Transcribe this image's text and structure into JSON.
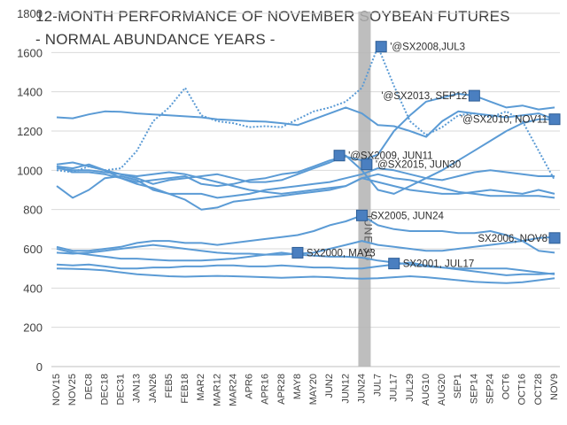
{
  "chart_data": {
    "type": "line",
    "title": "12-MONTH PERFORMANCE OF NOVEMBER SOYBEAN FUTURES",
    "subtitle": "- NORMAL ABUNDANCE YEARS -",
    "ylim": [
      0,
      1800
    ],
    "yticks": [
      0,
      200,
      400,
      600,
      800,
      1000,
      1200,
      1400,
      1600,
      1800
    ],
    "grid": "horizontal",
    "legend": "none",
    "colors": {
      "series": "#5b9bd5",
      "marker": "#4a7fc0",
      "marker_edge": "#2e5e96",
      "grid": "#d9d9d9",
      "highlight": "#b3b3b3"
    },
    "categories": [
      "NOV15",
      "NOV25",
      "DEC8",
      "DEC18",
      "DEC31",
      "JAN13",
      "JAN26",
      "FEB5",
      "FEB18",
      "MAR2",
      "MAR12",
      "MAR24",
      "APR6",
      "APR16",
      "APR28",
      "MAY8",
      "MAY20",
      "JUN2",
      "JUN12",
      "JUN24",
      "JUL7",
      "JUL17",
      "JUL29",
      "AUG10",
      "AUG20",
      "SEP1",
      "SEP14",
      "SEP24",
      "OCT6",
      "OCT16",
      "OCT28",
      "NOV9"
    ],
    "highlight": {
      "category_index": 19,
      "label": "JUNE 30"
    },
    "series": [
      {
        "values": [
          1270,
          1265,
          1285,
          1300,
          1298,
          1290,
          1285,
          1280,
          1275,
          1270,
          1260,
          1255,
          1250,
          1248,
          1240,
          1230,
          1260,
          1290,
          1320,
          1290,
          1230,
          1225,
          1200,
          1170,
          1250,
          1300,
          1290,
          1280,
          1270,
          1280,
          1290,
          1260
        ],
        "style": "solid"
      },
      {
        "values": [
          1000,
          990,
          1020,
          1000,
          1010,
          1100,
          1250,
          1320,
          1420,
          1280,
          1250,
          1240,
          1220,
          1225,
          1220,
          1260,
          1300,
          1320,
          1350,
          1420,
          1630,
          1430,
          1250,
          1180,
          1220,
          1280,
          1290,
          1270,
          1300,
          1250,
          1100,
          950
        ],
        "style": "dotted"
      },
      {
        "values": [
          1020,
          1010,
          1030,
          1000,
          960,
          940,
          950,
          960,
          970,
          930,
          920,
          930,
          950,
          960,
          980,
          990,
          1020,
          1050,
          1070,
          1050,
          1080,
          1200,
          1280,
          1350,
          1370,
          1390,
          1380,
          1350,
          1320,
          1330,
          1310,
          1320
        ],
        "style": "solid"
      },
      {
        "values": [
          1030,
          1040,
          1020,
          1000,
          980,
          960,
          930,
          950,
          960,
          970,
          980,
          960,
          940,
          940,
          950,
          980,
          1010,
          1040,
          1075,
          1000,
          900,
          880,
          920,
          960,
          1000,
          1050,
          1100,
          1150,
          1200,
          1240,
          1260,
          1260
        ],
        "style": "solid"
      },
      {
        "values": [
          920,
          860,
          900,
          960,
          970,
          950,
          900,
          880,
          880,
          880,
          860,
          870,
          880,
          900,
          910,
          920,
          930,
          940,
          960,
          980,
          1010,
          1000,
          980,
          960,
          950,
          970,
          990,
          1000,
          990,
          980,
          970,
          970
        ],
        "style": "solid"
      },
      {
        "values": [
          1010,
          1000,
          1000,
          990,
          980,
          970,
          980,
          990,
          980,
          960,
          940,
          920,
          900,
          890,
          880,
          890,
          900,
          910,
          920,
          960,
          980,
          960,
          950,
          930,
          910,
          890,
          880,
          870,
          870,
          870,
          870,
          860
        ],
        "style": "solid"
      },
      {
        "values": [
          1020,
          990,
          990,
          980,
          960,
          930,
          910,
          880,
          850,
          800,
          810,
          840,
          850,
          860,
          870,
          880,
          890,
          900,
          920,
          960,
          940,
          920,
          900,
          890,
          880,
          880,
          890,
          900,
          890,
          880,
          900,
          880
        ],
        "style": "solid"
      },
      {
        "values": [
          610,
          590,
          590,
          600,
          610,
          630,
          640,
          640,
          630,
          630,
          620,
          630,
          640,
          650,
          660,
          670,
          690,
          720,
          740,
          770,
          720,
          700,
          690,
          690,
          690,
          680,
          680,
          690,
          670,
          640,
          590,
          580
        ],
        "style": "solid"
      },
      {
        "values": [
          580,
          575,
          580,
          590,
          600,
          610,
          620,
          610,
          600,
          590,
          580,
          575,
          575,
          570,
          570,
          575,
          580,
          600,
          620,
          640,
          620,
          610,
          600,
          590,
          590,
          600,
          610,
          620,
          630,
          640,
          655,
          660
        ],
        "style": "solid"
      },
      {
        "values": [
          600,
          580,
          570,
          560,
          550,
          550,
          545,
          540,
          540,
          540,
          545,
          550,
          560,
          570,
          580,
          570,
          565,
          560,
          560,
          555,
          540,
          530,
          520,
          510,
          505,
          500,
          500,
          500,
          500,
          490,
          480,
          470
        ],
        "style": "solid"
      },
      {
        "values": [
          520,
          515,
          520,
          510,
          500,
          500,
          505,
          505,
          510,
          510,
          515,
          515,
          510,
          510,
          515,
          510,
          505,
          505,
          500,
          500,
          510,
          520,
          530,
          515,
          505,
          495,
          485,
          475,
          465,
          470,
          470,
          475
        ],
        "style": "solid"
      },
      {
        "values": [
          500,
          498,
          495,
          490,
          480,
          470,
          465,
          460,
          458,
          460,
          462,
          460,
          458,
          455,
          452,
          455,
          458,
          455,
          450,
          448,
          450,
          455,
          460,
          455,
          448,
          440,
          432,
          428,
          425,
          430,
          440,
          450
        ],
        "style": "solid"
      }
    ],
    "annotations": [
      {
        "text": "'@SX2008,JUL3",
        "x_index": 20.2,
        "y": 1630,
        "marker": true
      },
      {
        "text": "'@SX2013, SEP12",
        "x_index": 26.0,
        "y": 1380,
        "marker": true
      },
      {
        "text": "'@SX2010, NOV11",
        "x_index": 31.0,
        "y": 1260,
        "marker": true
      },
      {
        "text": "'@SX2009, JUN11",
        "x_index": 17.6,
        "y": 1075,
        "marker": true
      },
      {
        "text": "'@SX2015, JUN30",
        "x_index": 19.3,
        "y": 1030,
        "marker": true
      },
      {
        "text": "SX2005, JUN24",
        "x_index": 19.0,
        "y": 770,
        "marker": true
      },
      {
        "text": "SX2006, NOV8",
        "x_index": 31.0,
        "y": 655,
        "marker": true
      },
      {
        "text": "SX2000, MAY3",
        "x_index": 15.0,
        "y": 580,
        "marker": true
      },
      {
        "text": "SX2001, JUL17",
        "x_index": 21.0,
        "y": 525,
        "marker": true
      }
    ]
  }
}
